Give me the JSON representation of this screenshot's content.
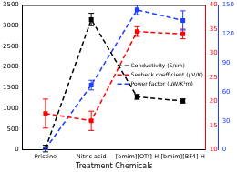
{
  "chart_data": {
    "type": "line",
    "x_label": "Treatment Chemicals",
    "categories": [
      "Pristine",
      "Nitric acid",
      "[bmim][OTf]-H",
      "[bmim][BF4]-H"
    ],
    "series": [
      {
        "name": "Conductivity (S/cm)",
        "color": "#000000",
        "values": [
          30,
          3150,
          1280,
          1180
        ],
        "errors": [
          80,
          150,
          60,
          50
        ],
        "axis": "y",
        "marker": "square",
        "line_style": "dashed"
      },
      {
        "name": "Seebeck coefficient (μV/K)",
        "color": "#ff0000",
        "values": [
          17.5,
          16,
          34.5,
          34
        ],
        "errors": [
          3,
          2,
          1,
          1
        ],
        "axis": "y2",
        "marker": "square",
        "line_style": "dashed"
      },
      {
        "name": "Power factor (μW/K²m)",
        "color": "#1f3fff",
        "values": [
          1,
          67,
          145,
          134
        ],
        "errors": [
          1,
          5,
          5,
          10
        ],
        "axis": "y3",
        "marker": "square",
        "line_style": "dashed"
      }
    ],
    "ylim": [
      0,
      3500
    ],
    "yticks": [
      0,
      500,
      1000,
      1500,
      2000,
      2500,
      3000,
      3500
    ],
    "y2lim": [
      10,
      40
    ],
    "y2ticks": [
      10,
      15,
      20,
      25,
      30,
      35,
      40
    ],
    "y3lim": [
      0,
      150
    ],
    "y3ticks": [
      0,
      30,
      60,
      90,
      120,
      150
    ],
    "grid": false,
    "legend": "right"
  }
}
